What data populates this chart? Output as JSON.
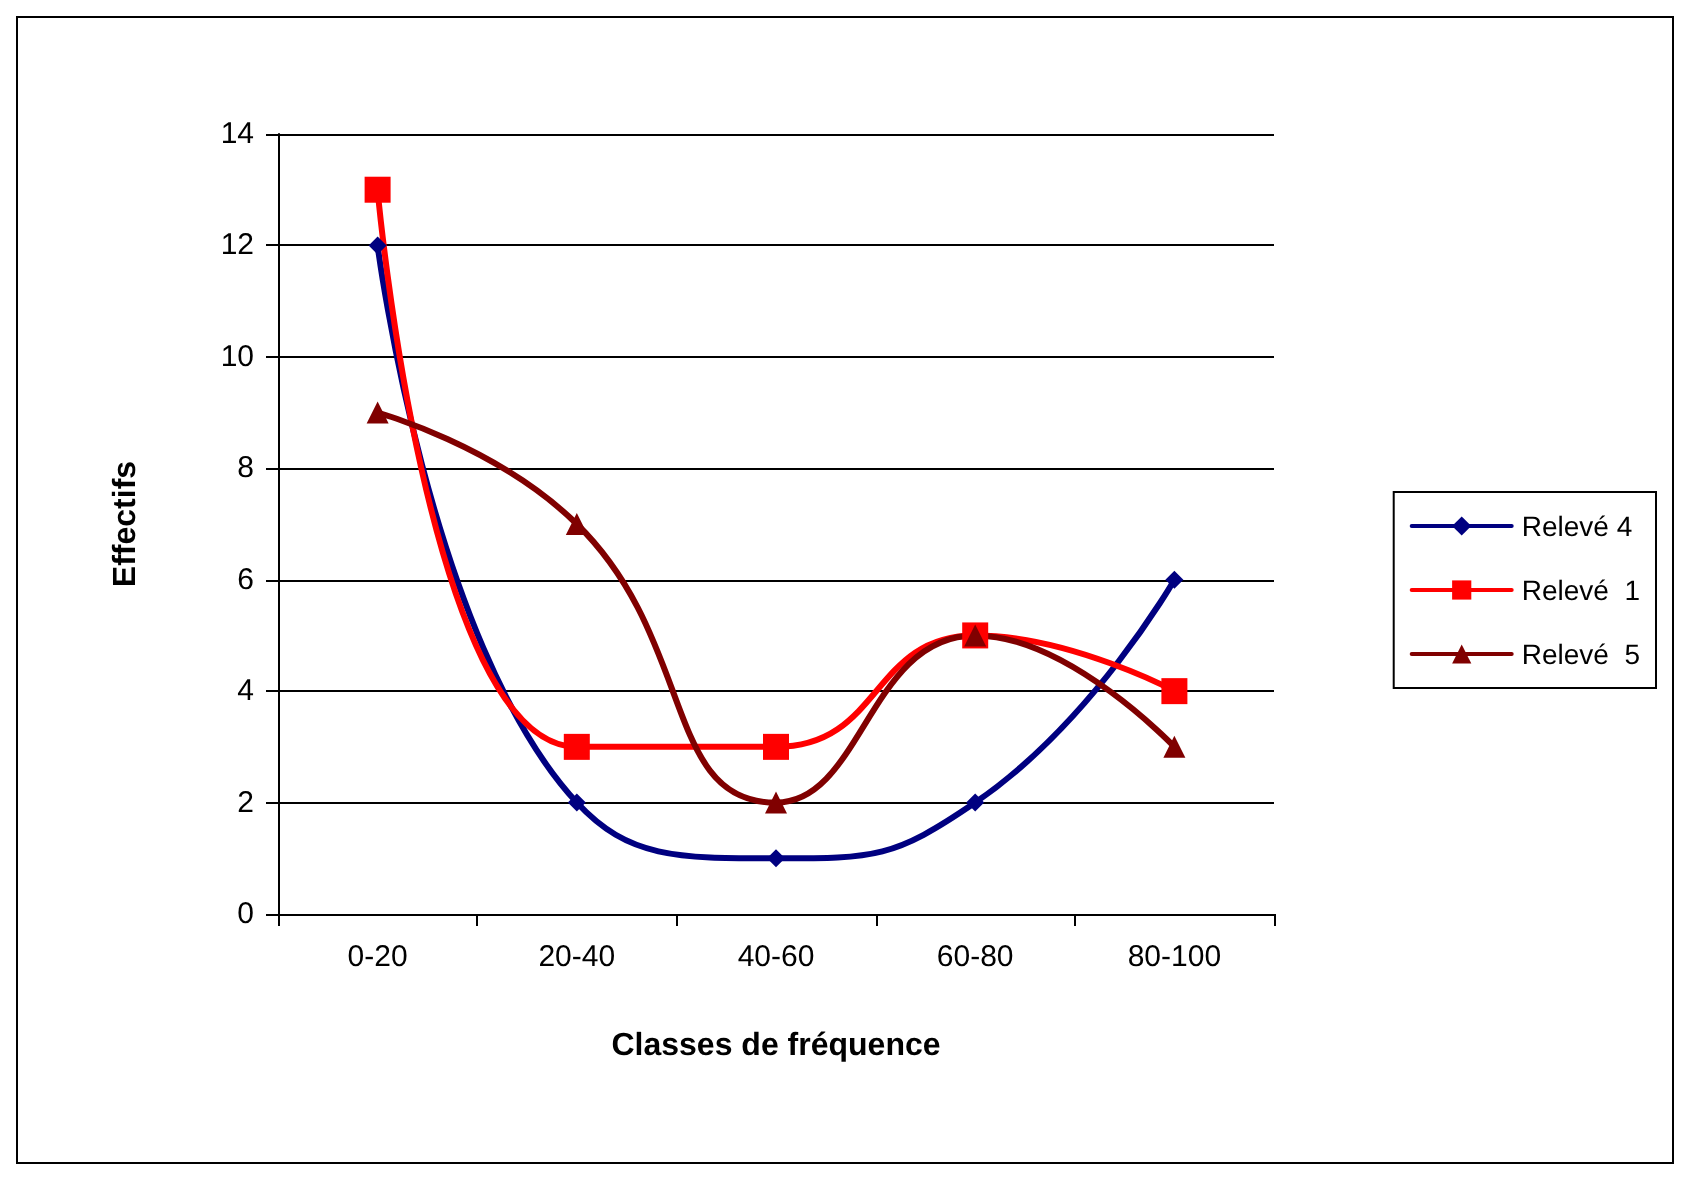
{
  "chart_data": {
    "type": "line",
    "xlabel": "Classes de fréquence",
    "ylabel": "Effectifs",
    "categories": [
      "0-20",
      "20-40",
      "40-60",
      "60-80",
      "80-100"
    ],
    "series": [
      {
        "name": "Relevé 4",
        "color": "#000080",
        "marker": "diamond",
        "values": [
          12,
          2,
          1,
          2,
          6
        ]
      },
      {
        "name": "Relevé  1",
        "color": "#ff0000",
        "marker": "square",
        "values": [
          13,
          3,
          3,
          5,
          4
        ]
      },
      {
        "name": "Relevé  5",
        "color": "#800000",
        "marker": "triangle",
        "values": [
          9,
          7,
          2,
          5,
          3
        ]
      }
    ],
    "ylim": [
      0,
      14
    ],
    "yticks": [
      0,
      2,
      4,
      6,
      8,
      10,
      12,
      14
    ],
    "grid": "y",
    "legend": "right",
    "line_style": "solid"
  }
}
